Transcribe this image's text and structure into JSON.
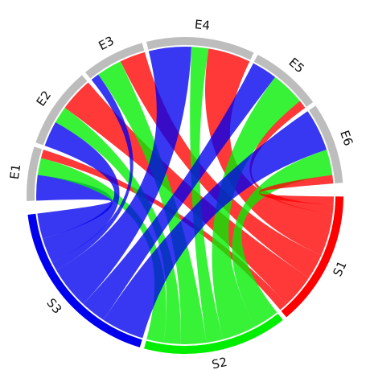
{
  "chart_data": {
    "type": "chord",
    "sectors": [
      {
        "id": "E1",
        "label": "E1",
        "group": "E",
        "color": "#bdbdbd"
      },
      {
        "id": "E2",
        "label": "E2",
        "group": "E",
        "color": "#bdbdbd"
      },
      {
        "id": "E3",
        "label": "E3",
        "group": "E",
        "color": "#bdbdbd"
      },
      {
        "id": "E4",
        "label": "E4",
        "group": "E",
        "color": "#bdbdbd"
      },
      {
        "id": "E5",
        "label": "E5",
        "group": "E",
        "color": "#bdbdbd"
      },
      {
        "id": "E6",
        "label": "E6",
        "group": "E",
        "color": "#bdbdbd"
      },
      {
        "id": "S1",
        "label": "S1",
        "group": "S",
        "color": "#ff0000"
      },
      {
        "id": "S2",
        "label": "S2",
        "group": "S",
        "color": "#00ee00"
      },
      {
        "id": "S3",
        "label": "S3",
        "group": "S",
        "color": "#0000ee"
      }
    ],
    "links": [
      {
        "source": "S3",
        "target": "E1",
        "value": 3
      },
      {
        "source": "S2",
        "target": "E1",
        "value": 2
      },
      {
        "source": "S1",
        "target": "E1",
        "value": 1
      },
      {
        "source": "S3",
        "target": "E2",
        "value": 3
      },
      {
        "source": "S2",
        "target": "E2",
        "value": 2
      },
      {
        "source": "S1",
        "target": "E2",
        "value": 4
      },
      {
        "source": "S3",
        "target": "E3",
        "value": 1
      },
      {
        "source": "S2",
        "target": "E3",
        "value": 3
      },
      {
        "source": "S1",
        "target": "E3",
        "value": 3
      },
      {
        "source": "S3",
        "target": "E4",
        "value": 5
      },
      {
        "source": "S2",
        "target": "E4",
        "value": 2
      },
      {
        "source": "S1",
        "target": "E4",
        "value": 5
      },
      {
        "source": "S3",
        "target": "E5",
        "value": 3
      },
      {
        "source": "S2",
        "target": "E5",
        "value": 4
      },
      {
        "source": "S1",
        "target": "E5",
        "value": 1
      },
      {
        "source": "S3",
        "target": "E6",
        "value": 5
      },
      {
        "source": "S2",
        "target": "E6",
        "value": 3
      },
      {
        "source": "S1",
        "target": "E6",
        "value": 1
      }
    ]
  }
}
